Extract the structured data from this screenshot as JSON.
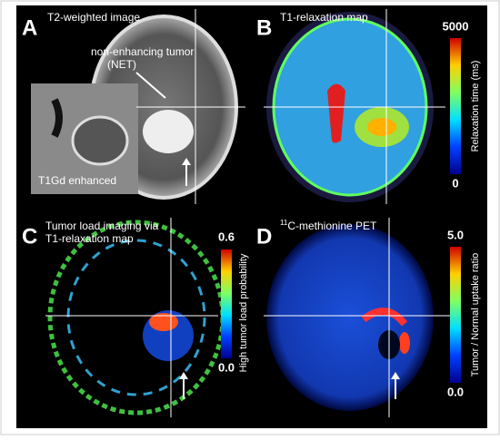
{
  "panels": [
    {
      "letter": "A",
      "title": "T2-weighted image",
      "annotations": [
        "non-enhancing tumor",
        "(NET)",
        "T1Gd enhanced"
      ]
    },
    {
      "letter": "B",
      "title": "T1-relaxation map",
      "colorbar": {
        "max": "5000",
        "min": "0",
        "label": "Relaxation time (ms)"
      }
    },
    {
      "letter": "C",
      "title_lines": [
        "Tumor load imaging via",
        "T1-relaxation map"
      ],
      "colorbar": {
        "max": "0.6",
        "min": "0.0",
        "label": "High tumor load probability"
      }
    },
    {
      "letter": "D",
      "title_superscript": "11",
      "title": "C-methionine PET",
      "colorbar": {
        "max": "5.0",
        "min": "0.0",
        "label": "Tumor / Normal uptake ratio"
      }
    }
  ]
}
